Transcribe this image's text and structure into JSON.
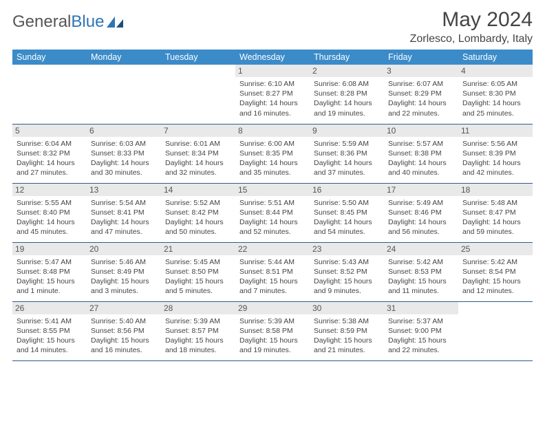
{
  "logo": {
    "text1": "General",
    "text2": "Blue"
  },
  "title": "May 2024",
  "location": "Zorlesco, Lombardy, Italy",
  "colors": {
    "header_bg": "#3b8bc9",
    "header_text": "#ffffff",
    "daynum_bg": "#e9e9e9",
    "border": "#2e5b88",
    "logo_gray": "#555555",
    "logo_blue": "#2e75b6"
  },
  "weekdays": [
    "Sunday",
    "Monday",
    "Tuesday",
    "Wednesday",
    "Thursday",
    "Friday",
    "Saturday"
  ],
  "weeks": [
    [
      {
        "day": "",
        "sunrise": "",
        "sunset": "",
        "daylight": ""
      },
      {
        "day": "",
        "sunrise": "",
        "sunset": "",
        "daylight": ""
      },
      {
        "day": "",
        "sunrise": "",
        "sunset": "",
        "daylight": ""
      },
      {
        "day": "1",
        "sunrise": "Sunrise: 6:10 AM",
        "sunset": "Sunset: 8:27 PM",
        "daylight": "Daylight: 14 hours and 16 minutes."
      },
      {
        "day": "2",
        "sunrise": "Sunrise: 6:08 AM",
        "sunset": "Sunset: 8:28 PM",
        "daylight": "Daylight: 14 hours and 19 minutes."
      },
      {
        "day": "3",
        "sunrise": "Sunrise: 6:07 AM",
        "sunset": "Sunset: 8:29 PM",
        "daylight": "Daylight: 14 hours and 22 minutes."
      },
      {
        "day": "4",
        "sunrise": "Sunrise: 6:05 AM",
        "sunset": "Sunset: 8:30 PM",
        "daylight": "Daylight: 14 hours and 25 minutes."
      }
    ],
    [
      {
        "day": "5",
        "sunrise": "Sunrise: 6:04 AM",
        "sunset": "Sunset: 8:32 PM",
        "daylight": "Daylight: 14 hours and 27 minutes."
      },
      {
        "day": "6",
        "sunrise": "Sunrise: 6:03 AM",
        "sunset": "Sunset: 8:33 PM",
        "daylight": "Daylight: 14 hours and 30 minutes."
      },
      {
        "day": "7",
        "sunrise": "Sunrise: 6:01 AM",
        "sunset": "Sunset: 8:34 PM",
        "daylight": "Daylight: 14 hours and 32 minutes."
      },
      {
        "day": "8",
        "sunrise": "Sunrise: 6:00 AM",
        "sunset": "Sunset: 8:35 PM",
        "daylight": "Daylight: 14 hours and 35 minutes."
      },
      {
        "day": "9",
        "sunrise": "Sunrise: 5:59 AM",
        "sunset": "Sunset: 8:36 PM",
        "daylight": "Daylight: 14 hours and 37 minutes."
      },
      {
        "day": "10",
        "sunrise": "Sunrise: 5:57 AM",
        "sunset": "Sunset: 8:38 PM",
        "daylight": "Daylight: 14 hours and 40 minutes."
      },
      {
        "day": "11",
        "sunrise": "Sunrise: 5:56 AM",
        "sunset": "Sunset: 8:39 PM",
        "daylight": "Daylight: 14 hours and 42 minutes."
      }
    ],
    [
      {
        "day": "12",
        "sunrise": "Sunrise: 5:55 AM",
        "sunset": "Sunset: 8:40 PM",
        "daylight": "Daylight: 14 hours and 45 minutes."
      },
      {
        "day": "13",
        "sunrise": "Sunrise: 5:54 AM",
        "sunset": "Sunset: 8:41 PM",
        "daylight": "Daylight: 14 hours and 47 minutes."
      },
      {
        "day": "14",
        "sunrise": "Sunrise: 5:52 AM",
        "sunset": "Sunset: 8:42 PM",
        "daylight": "Daylight: 14 hours and 50 minutes."
      },
      {
        "day": "15",
        "sunrise": "Sunrise: 5:51 AM",
        "sunset": "Sunset: 8:44 PM",
        "daylight": "Daylight: 14 hours and 52 minutes."
      },
      {
        "day": "16",
        "sunrise": "Sunrise: 5:50 AM",
        "sunset": "Sunset: 8:45 PM",
        "daylight": "Daylight: 14 hours and 54 minutes."
      },
      {
        "day": "17",
        "sunrise": "Sunrise: 5:49 AM",
        "sunset": "Sunset: 8:46 PM",
        "daylight": "Daylight: 14 hours and 56 minutes."
      },
      {
        "day": "18",
        "sunrise": "Sunrise: 5:48 AM",
        "sunset": "Sunset: 8:47 PM",
        "daylight": "Daylight: 14 hours and 59 minutes."
      }
    ],
    [
      {
        "day": "19",
        "sunrise": "Sunrise: 5:47 AM",
        "sunset": "Sunset: 8:48 PM",
        "daylight": "Daylight: 15 hours and 1 minute."
      },
      {
        "day": "20",
        "sunrise": "Sunrise: 5:46 AM",
        "sunset": "Sunset: 8:49 PM",
        "daylight": "Daylight: 15 hours and 3 minutes."
      },
      {
        "day": "21",
        "sunrise": "Sunrise: 5:45 AM",
        "sunset": "Sunset: 8:50 PM",
        "daylight": "Daylight: 15 hours and 5 minutes."
      },
      {
        "day": "22",
        "sunrise": "Sunrise: 5:44 AM",
        "sunset": "Sunset: 8:51 PM",
        "daylight": "Daylight: 15 hours and 7 minutes."
      },
      {
        "day": "23",
        "sunrise": "Sunrise: 5:43 AM",
        "sunset": "Sunset: 8:52 PM",
        "daylight": "Daylight: 15 hours and 9 minutes."
      },
      {
        "day": "24",
        "sunrise": "Sunrise: 5:42 AM",
        "sunset": "Sunset: 8:53 PM",
        "daylight": "Daylight: 15 hours and 11 minutes."
      },
      {
        "day": "25",
        "sunrise": "Sunrise: 5:42 AM",
        "sunset": "Sunset: 8:54 PM",
        "daylight": "Daylight: 15 hours and 12 minutes."
      }
    ],
    [
      {
        "day": "26",
        "sunrise": "Sunrise: 5:41 AM",
        "sunset": "Sunset: 8:55 PM",
        "daylight": "Daylight: 15 hours and 14 minutes."
      },
      {
        "day": "27",
        "sunrise": "Sunrise: 5:40 AM",
        "sunset": "Sunset: 8:56 PM",
        "daylight": "Daylight: 15 hours and 16 minutes."
      },
      {
        "day": "28",
        "sunrise": "Sunrise: 5:39 AM",
        "sunset": "Sunset: 8:57 PM",
        "daylight": "Daylight: 15 hours and 18 minutes."
      },
      {
        "day": "29",
        "sunrise": "Sunrise: 5:39 AM",
        "sunset": "Sunset: 8:58 PM",
        "daylight": "Daylight: 15 hours and 19 minutes."
      },
      {
        "day": "30",
        "sunrise": "Sunrise: 5:38 AM",
        "sunset": "Sunset: 8:59 PM",
        "daylight": "Daylight: 15 hours and 21 minutes."
      },
      {
        "day": "31",
        "sunrise": "Sunrise: 5:37 AM",
        "sunset": "Sunset: 9:00 PM",
        "daylight": "Daylight: 15 hours and 22 minutes."
      },
      {
        "day": "",
        "sunrise": "",
        "sunset": "",
        "daylight": ""
      }
    ]
  ]
}
